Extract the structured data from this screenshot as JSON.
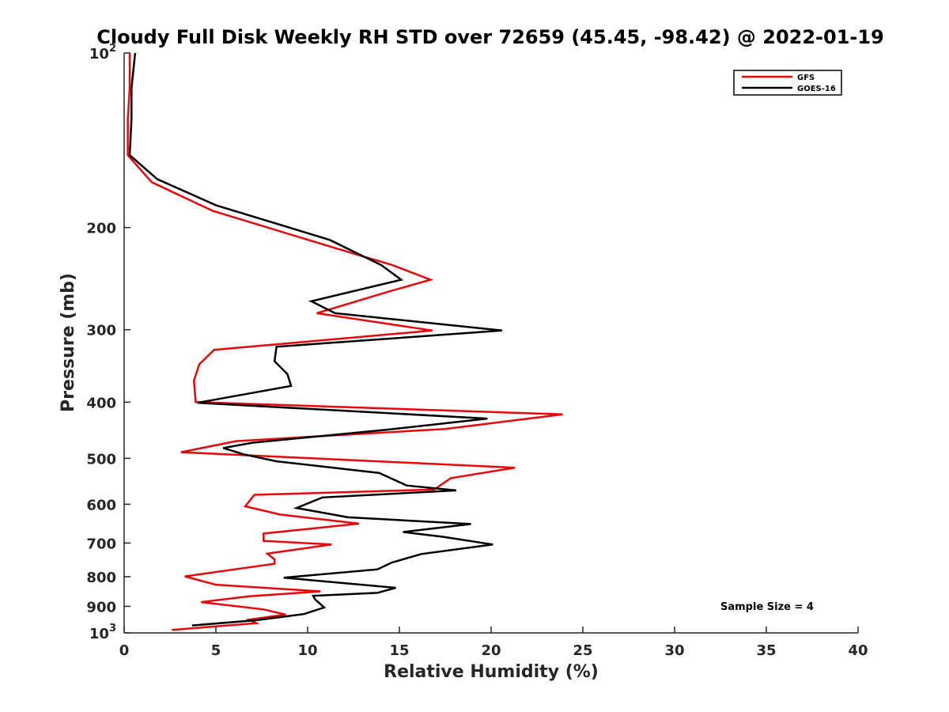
{
  "chart_data": {
    "type": "line",
    "title": "Cloudy Full Disk Weekly RH STD over 72659 (45.45, -98.42) @ 2022-01-19",
    "xlabel": "Relative Humidity (%)",
    "ylabel": "Pressure (mb)",
    "xlim": [
      0,
      40
    ],
    "ylim": [
      100,
      1000
    ],
    "y_scale": "log",
    "y_reversed": true,
    "x_ticks": [
      0,
      5,
      10,
      15,
      20,
      25,
      30,
      35,
      40
    ],
    "x_tick_labels": [
      "0",
      "5",
      "10",
      "15",
      "20",
      "25",
      "30",
      "35",
      "40"
    ],
    "y_ticks": [
      {
        "value": 100,
        "label": "10",
        "sup": "2"
      },
      {
        "value": 200,
        "label": "200"
      },
      {
        "value": 300,
        "label": "300"
      },
      {
        "value": 400,
        "label": "400"
      },
      {
        "value": 500,
        "label": "500"
      },
      {
        "value": 600,
        "label": "600"
      },
      {
        "value": 700,
        "label": "700"
      },
      {
        "value": 800,
        "label": "800"
      },
      {
        "value": 900,
        "label": "900"
      },
      {
        "value": 1000,
        "label": "10",
        "sup": "3"
      }
    ],
    "grid": false,
    "legend_position": "top-right",
    "annotation": "Sample Size = 4",
    "series": [
      {
        "name": "GFS",
        "color": "#e8060a",
        "points": [
          [
            0.3,
            100
          ],
          [
            0.3,
            115
          ],
          [
            0.2,
            130
          ],
          [
            0.2,
            150
          ],
          [
            1.5,
            167
          ],
          [
            4.8,
            187
          ],
          [
            11.5,
            217
          ],
          [
            14.6,
            232
          ],
          [
            16.7,
            246
          ],
          [
            14.4,
            258
          ],
          [
            10.5,
            281
          ],
          [
            16.8,
            301
          ],
          [
            4.9,
            325
          ],
          [
            4.1,
            344
          ],
          [
            3.8,
            367
          ],
          [
            3.9,
            400
          ],
          [
            23.9,
            420
          ],
          [
            17.5,
            445
          ],
          [
            6.1,
            467
          ],
          [
            3.1,
            488
          ],
          [
            21.3,
            519
          ],
          [
            17.8,
            541
          ],
          [
            16.9,
            566
          ],
          [
            7.1,
            578
          ],
          [
            6.6,
            605
          ],
          [
            8.5,
            625
          ],
          [
            12.8,
            648
          ],
          [
            7.6,
            674
          ],
          [
            7.6,
            694
          ],
          [
            11.3,
            704
          ],
          [
            7.8,
            730
          ],
          [
            8.2,
            747
          ],
          [
            8.2,
            760
          ],
          [
            3.3,
            799
          ],
          [
            5.0,
            826
          ],
          [
            10.7,
            848
          ],
          [
            6.8,
            865
          ],
          [
            4.2,
            885
          ],
          [
            7.6,
            911
          ],
          [
            8.8,
            930
          ],
          [
            6.8,
            949
          ],
          [
            7.2,
            962
          ],
          [
            2.6,
            988
          ]
        ]
      },
      {
        "name": "GOES-16",
        "color": "#000000",
        "points": [
          [
            0.6,
            100
          ],
          [
            0.4,
            115
          ],
          [
            0.4,
            130
          ],
          [
            0.3,
            150
          ],
          [
            1.8,
            165
          ],
          [
            5.0,
            183
          ],
          [
            11.2,
            210
          ],
          [
            14.0,
            232
          ],
          [
            15.1,
            246
          ],
          [
            10.2,
            268
          ],
          [
            11.5,
            281
          ],
          [
            20.6,
            301
          ],
          [
            8.3,
            321
          ],
          [
            8.2,
            340
          ],
          [
            8.9,
            358
          ],
          [
            9.1,
            375
          ],
          [
            4.0,
            401
          ],
          [
            19.8,
            427
          ],
          [
            14.4,
            446
          ],
          [
            7.0,
            470
          ],
          [
            5.4,
            480
          ],
          [
            6.5,
            492
          ],
          [
            8.3,
            506
          ],
          [
            13.9,
            530
          ],
          [
            15.4,
            557
          ],
          [
            18.1,
            568
          ],
          [
            10.8,
            584
          ],
          [
            9.4,
            609
          ],
          [
            12.2,
            632
          ],
          [
            18.9,
            649
          ],
          [
            15.2,
            670
          ],
          [
            17.4,
            683
          ],
          [
            20.1,
            704
          ],
          [
            16.2,
            731
          ],
          [
            14.6,
            756
          ],
          [
            13.8,
            777
          ],
          [
            8.7,
            803
          ],
          [
            14.8,
            836
          ],
          [
            13.8,
            853
          ],
          [
            10.3,
            863
          ],
          [
            10.4,
            875
          ],
          [
            10.9,
            904
          ],
          [
            9.8,
            928
          ],
          [
            7.2,
            951
          ],
          [
            3.7,
            971
          ]
        ]
      }
    ]
  }
}
